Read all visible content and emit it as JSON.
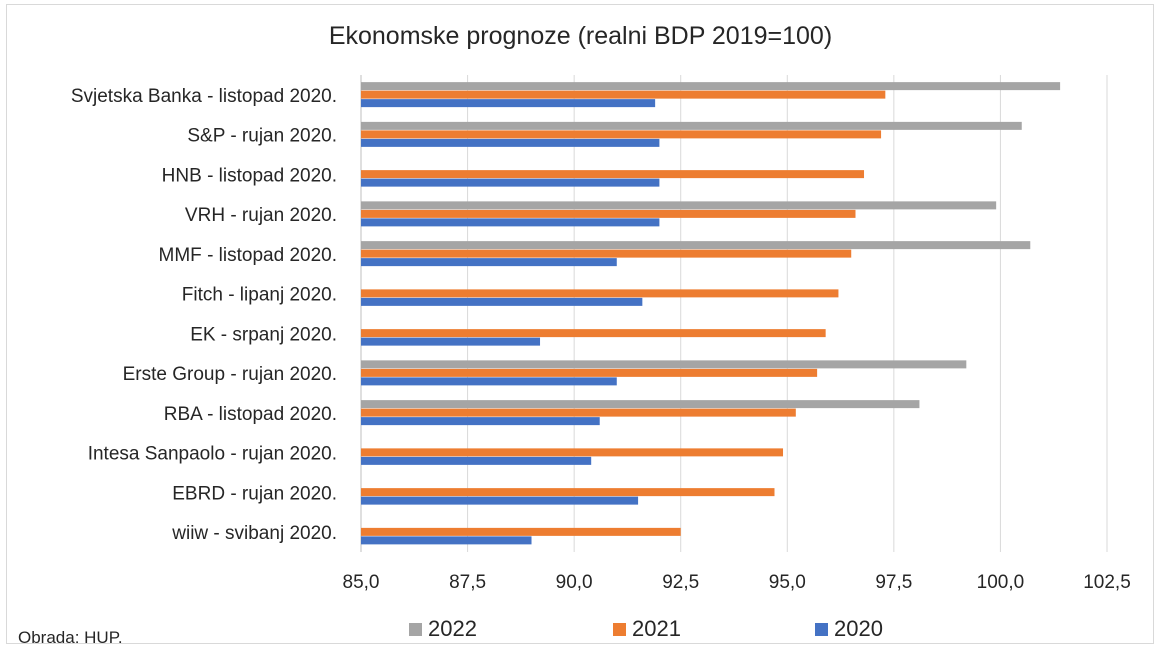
{
  "title": "Ekonomske prognoze (realni BDP 2019=100)",
  "source": "Obrada: HUP.",
  "legend": [
    {
      "name": "2022",
      "color": "#a5a5a5"
    },
    {
      "name": "2021",
      "color": "#ed7d31"
    },
    {
      "name": "2020",
      "color": "#4472c4"
    }
  ],
  "chart_data": {
    "type": "bar",
    "orientation": "horizontal",
    "title": "Ekonomske prognoze (realni BDP 2019=100)",
    "xlim": [
      85.0,
      102.5
    ],
    "xticks": [
      "85,0",
      "87,5",
      "90,0",
      "92,5",
      "95,0",
      "97,5",
      "100,0",
      "102,5"
    ],
    "xtick_values": [
      85.0,
      87.5,
      90.0,
      92.5,
      95.0,
      97.5,
      100.0,
      102.5
    ],
    "grid": true,
    "legend_position": "bottom",
    "categories": [
      "Svjetska Banka - listopad 2020.",
      "S&P - rujan 2020.",
      "HNB - listopad 2020.",
      "VRH - rujan 2020.",
      "MMF - listopad 2020.",
      "Fitch - lipanj 2020.",
      "EK - srpanj 2020.",
      "Erste Group - rujan 2020.",
      "RBA - listopad 2020.",
      "Intesa Sanpaolo - rujan 2020.",
      "EBRD - rujan 2020.",
      "wiiw - svibanj 2020."
    ],
    "series": [
      {
        "name": "2022",
        "color": "#a5a5a5",
        "values": [
          101.4,
          100.5,
          null,
          99.9,
          100.7,
          null,
          null,
          99.2,
          98.1,
          null,
          null,
          null
        ]
      },
      {
        "name": "2021",
        "color": "#ed7d31",
        "values": [
          97.3,
          97.2,
          96.8,
          96.6,
          96.5,
          96.2,
          95.9,
          95.7,
          95.2,
          94.9,
          94.7,
          92.5
        ]
      },
      {
        "name": "2020",
        "color": "#4472c4",
        "values": [
          91.9,
          92.0,
          92.0,
          92.0,
          91.0,
          91.6,
          89.2,
          91.0,
          90.6,
          90.4,
          91.5,
          89.0
        ]
      }
    ]
  }
}
